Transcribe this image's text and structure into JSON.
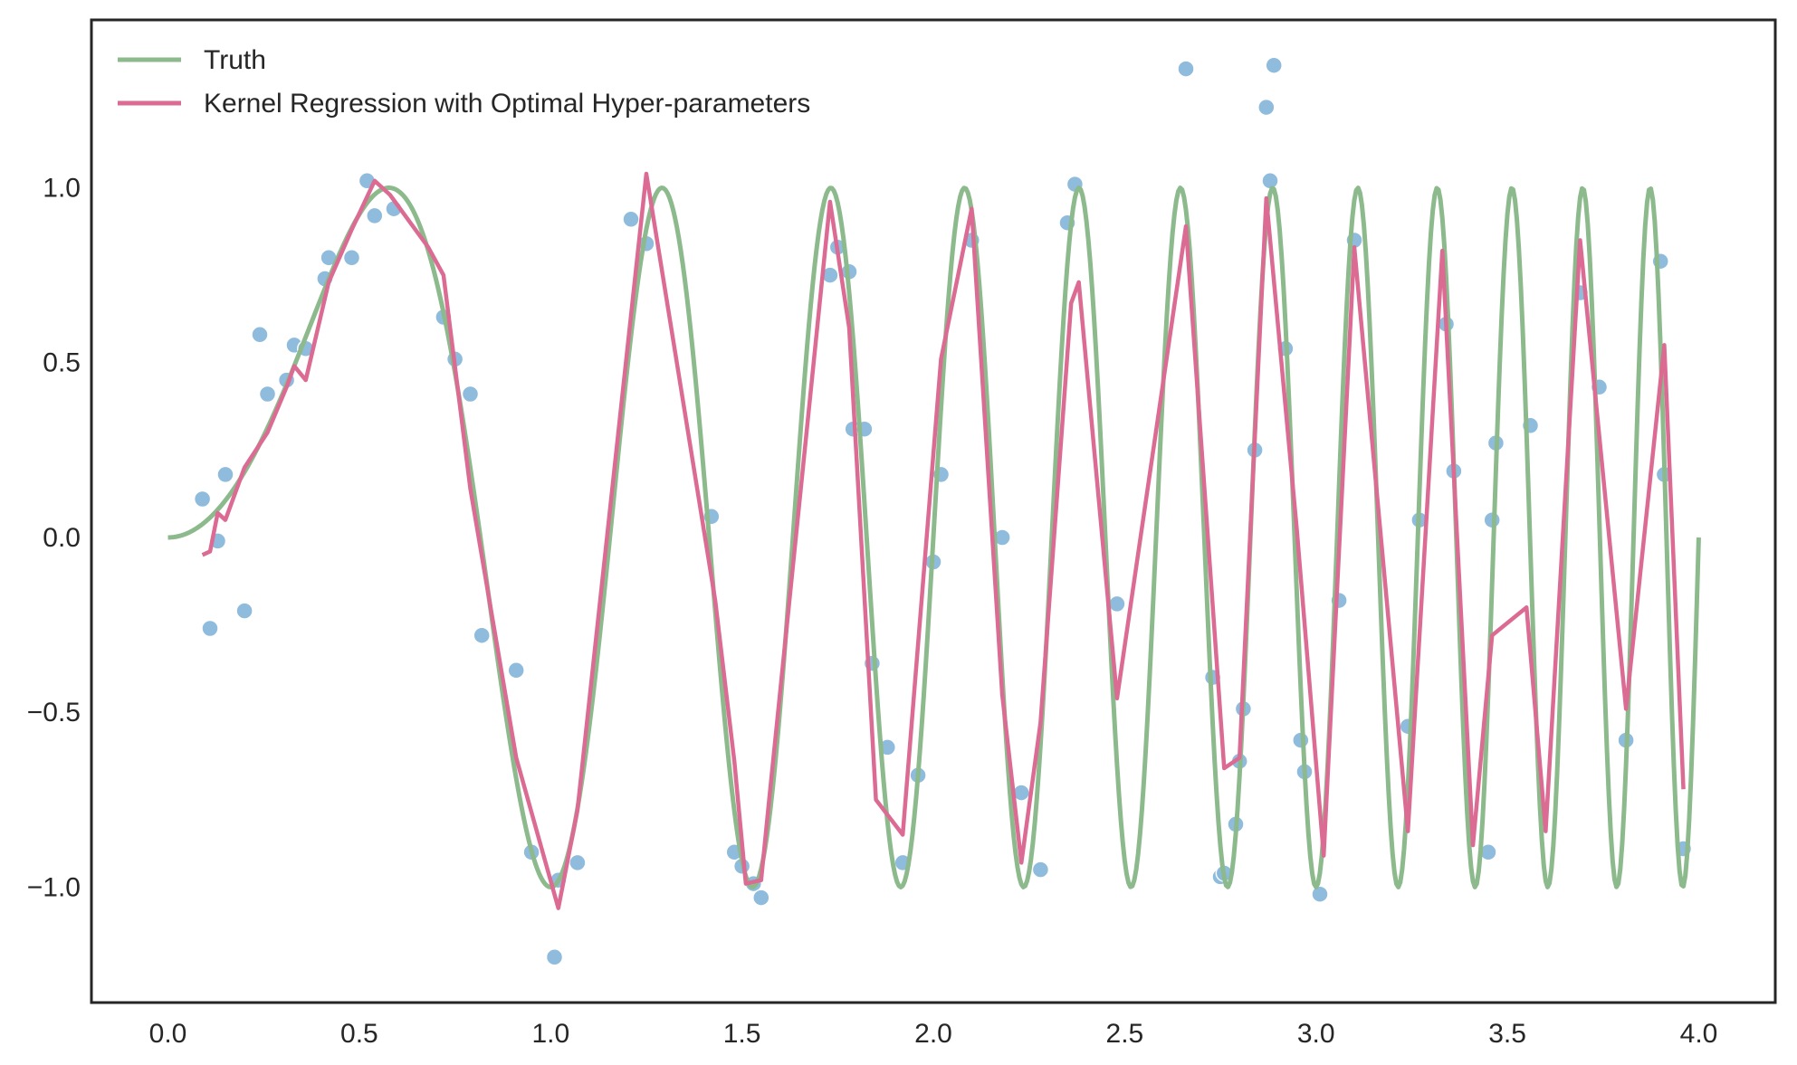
{
  "chart_data": {
    "type": "line",
    "title": "",
    "xlabel": "",
    "ylabel": "",
    "xlim": [
      -0.2,
      4.2
    ],
    "ylim": [
      -1.33,
      1.48
    ],
    "xticks": [
      0.0,
      0.5,
      1.0,
      1.5,
      2.0,
      2.5,
      3.0,
      3.5,
      4.0
    ],
    "xtick_labels": [
      "0.0",
      "0.5",
      "1.0",
      "1.5",
      "2.0",
      "2.5",
      "3.0",
      "3.5",
      "4.0"
    ],
    "yticks": [
      -1.0,
      -0.5,
      0.0,
      0.5,
      1.0
    ],
    "ytick_labels": [
      "−1.0",
      "−0.5",
      "0.0",
      "0.5",
      "1.0"
    ],
    "grid": false,
    "legend_position": "top-left",
    "colors": {
      "truth": "#8cba8c",
      "kernel": "#db6b93",
      "scatter": "#8ab8dc",
      "axis": "#262626"
    },
    "series": [
      {
        "name": "Truth",
        "kind": "line",
        "function": "sin(x^2 * pi * 1.5)",
        "x_range": [
          0.0,
          4.0
        ],
        "peaks_x": [
          0.58,
          1.29,
          1.73,
          2.08,
          2.38,
          2.65,
          2.88,
          3.11,
          3.32,
          3.51,
          3.7,
          3.88
        ]
      },
      {
        "name": "Kernel Regression with Optimal Hyper-parameters",
        "kind": "line",
        "x": [
          0.09,
          0.11,
          0.13,
          0.15,
          0.2,
          0.26,
          0.31,
          0.33,
          0.36,
          0.42,
          0.48,
          0.54,
          0.58,
          0.68,
          0.72,
          0.79,
          0.91,
          1.02,
          1.07,
          1.25,
          1.43,
          1.48,
          1.51,
          1.55,
          1.57,
          1.73,
          1.78,
          1.85,
          1.92,
          2.02,
          2.1,
          2.18,
          2.23,
          2.28,
          2.36,
          2.38,
          2.48,
          2.66,
          2.76,
          2.8,
          2.87,
          2.95,
          3.02,
          3.1,
          3.24,
          3.33,
          3.41,
          3.46,
          3.55,
          3.6,
          3.69,
          3.81,
          3.91,
          3.96
        ],
        "y": [
          -0.05,
          -0.04,
          0.07,
          0.05,
          0.2,
          0.3,
          0.43,
          0.49,
          0.45,
          0.73,
          0.88,
          1.02,
          0.98,
          0.83,
          0.75,
          0.14,
          -0.63,
          -1.06,
          -0.78,
          1.04,
          -0.18,
          -0.64,
          -0.99,
          -0.98,
          -0.76,
          0.96,
          0.6,
          -0.75,
          -0.85,
          0.51,
          0.94,
          -0.45,
          -0.93,
          -0.53,
          0.67,
          0.73,
          -0.46,
          0.89,
          -0.66,
          -0.63,
          0.97,
          0.02,
          -0.91,
          0.83,
          -0.84,
          0.82,
          -0.88,
          -0.28,
          -0.2,
          -0.84,
          0.85,
          -0.49,
          0.55,
          -0.72
        ]
      },
      {
        "name": "",
        "kind": "scatter",
        "x": [
          0.09,
          0.11,
          0.13,
          0.15,
          0.2,
          0.24,
          0.26,
          0.31,
          0.33,
          0.36,
          0.41,
          0.42,
          0.48,
          0.52,
          0.54,
          0.59,
          0.72,
          0.75,
          0.79,
          0.82,
          0.91,
          0.95,
          1.01,
          1.02,
          1.07,
          1.21,
          1.25,
          1.42,
          1.48,
          1.5,
          1.53,
          1.55,
          1.73,
          1.75,
          1.78,
          1.79,
          1.82,
          1.84,
          1.88,
          1.92,
          1.96,
          2.0,
          2.02,
          2.1,
          2.18,
          2.23,
          2.28,
          2.35,
          2.37,
          2.48,
          2.66,
          2.73,
          2.75,
          2.76,
          2.79,
          2.8,
          2.81,
          2.84,
          2.87,
          2.88,
          2.89,
          2.92,
          2.96,
          2.97,
          3.01,
          3.06,
          3.1,
          3.24,
          3.27,
          3.34,
          3.36,
          3.45,
          3.46,
          3.47,
          3.56,
          3.69,
          3.74,
          3.81,
          3.9,
          3.91,
          3.96
        ],
        "y": [
          0.11,
          -0.26,
          -0.01,
          0.18,
          -0.21,
          0.58,
          0.41,
          0.45,
          0.55,
          0.54,
          0.74,
          0.8,
          0.8,
          1.02,
          0.92,
          0.94,
          0.63,
          0.51,
          0.41,
          -0.28,
          -0.38,
          -0.9,
          -1.2,
          -0.98,
          -0.93,
          0.91,
          0.84,
          0.06,
          -0.9,
          -0.94,
          -0.99,
          -1.03,
          0.75,
          0.83,
          0.76,
          0.31,
          0.31,
          -0.36,
          -0.6,
          -0.93,
          -0.68,
          -0.07,
          0.18,
          0.85,
          0.0,
          -0.73,
          -0.95,
          0.9,
          1.01,
          -0.19,
          1.34,
          -0.4,
          -0.97,
          -0.96,
          -0.82,
          -0.64,
          -0.49,
          0.25,
          1.23,
          1.02,
          1.35,
          0.54,
          -0.58,
          -0.67,
          -1.02,
          -0.18,
          0.85,
          -0.54,
          0.05,
          0.61,
          0.19,
          -0.9,
          0.05,
          0.27,
          0.32,
          0.7,
          0.43,
          -0.58,
          0.79,
          0.18,
          -0.89
        ]
      }
    ]
  }
}
